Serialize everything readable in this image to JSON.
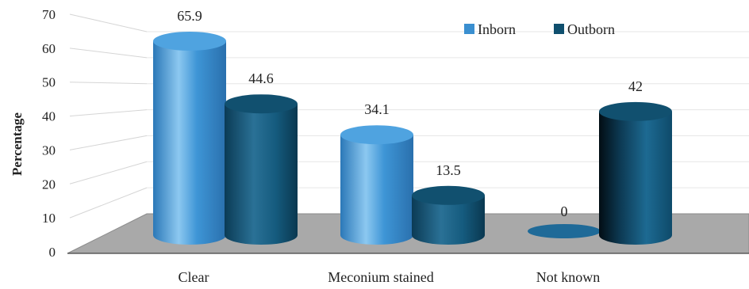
{
  "chart_data": {
    "type": "bar",
    "title": "",
    "xlabel": "",
    "ylabel": "Percentage",
    "ylim": [
      0,
      70
    ],
    "yticks": [
      0,
      10,
      20,
      30,
      40,
      50,
      60,
      70
    ],
    "categories": [
      "Clear",
      "Meconium stained",
      "Not known"
    ],
    "series": [
      {
        "name": "Inborn",
        "values": [
          65.9,
          34.1,
          0
        ],
        "color": "#3a8fd0"
      },
      {
        "name": "Outborn",
        "values": [
          44.6,
          13.5,
          42
        ],
        "color": "#0f4f6e"
      }
    ],
    "data_labels": [
      "65.9",
      "34.1",
      "0",
      "44.6",
      "13.5",
      "42"
    ],
    "grid": true,
    "legend_position": "top-right",
    "style": "3d-cylinder"
  }
}
